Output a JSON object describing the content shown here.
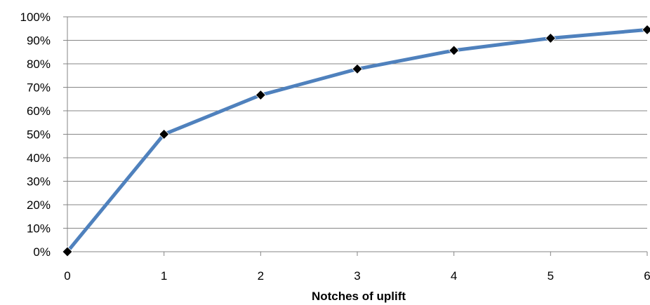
{
  "chart_data": {
    "type": "line",
    "title": "",
    "xlabel": "Notches of uplift",
    "ylabel": "",
    "x": [
      0,
      1,
      2,
      3,
      4,
      5,
      6
    ],
    "x_ticks": [
      "0",
      "1",
      "2",
      "3",
      "4",
      "5",
      "6"
    ],
    "y_ticks": [
      "0%",
      "10%",
      "20%",
      "30%",
      "40%",
      "50%",
      "60%",
      "70%",
      "80%",
      "90%",
      "100%"
    ],
    "ylim": [
      0,
      1
    ],
    "y_format": "percent",
    "grid": true,
    "legend": "none",
    "series": [
      {
        "values": [
          0.0,
          0.5,
          0.667,
          0.778,
          0.857,
          0.909,
          0.945
        ],
        "line_color": "#4F81BD",
        "marker": "diamond",
        "marker_color": "#000000"
      }
    ]
  }
}
